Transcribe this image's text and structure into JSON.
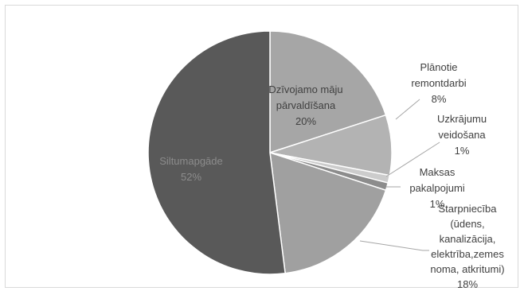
{
  "chart_data": {
    "type": "pie",
    "title": "",
    "slices": [
      {
        "label": [
          "Dzīvojamo māju",
          "pārvaldīšana"
        ],
        "value": 20,
        "pct_label": "20%",
        "color": "#a6a6a6"
      },
      {
        "label": [
          "Plānotie",
          "remontdarbi"
        ],
        "value": 8,
        "pct_label": "8%",
        "color": "#b3b3b3"
      },
      {
        "label": [
          "Uzkrājumu",
          "veidošana"
        ],
        "value": 1,
        "pct_label": "1%",
        "color": "#cccccc"
      },
      {
        "label": [
          "Maksas",
          "pakalpojumi"
        ],
        "value": 1,
        "pct_label": "1%",
        "color": "#8c8c8c"
      },
      {
        "label": [
          "Starpniecība",
          "(ūdens,",
          "kanalizācija,",
          "elektrība,zemes",
          "noma, atkritumi)"
        ],
        "value": 18,
        "pct_label": "18%",
        "color": "#a0a0a0"
      },
      {
        "label": [
          "Siltumapgāde"
        ],
        "value": 52,
        "pct_label": "52%",
        "color": "#595959"
      }
    ],
    "legend": "none",
    "label_colors": {
      "outside": "#404040",
      "inside_light": "#404040",
      "inside_dark": "#8c8c8c"
    }
  }
}
